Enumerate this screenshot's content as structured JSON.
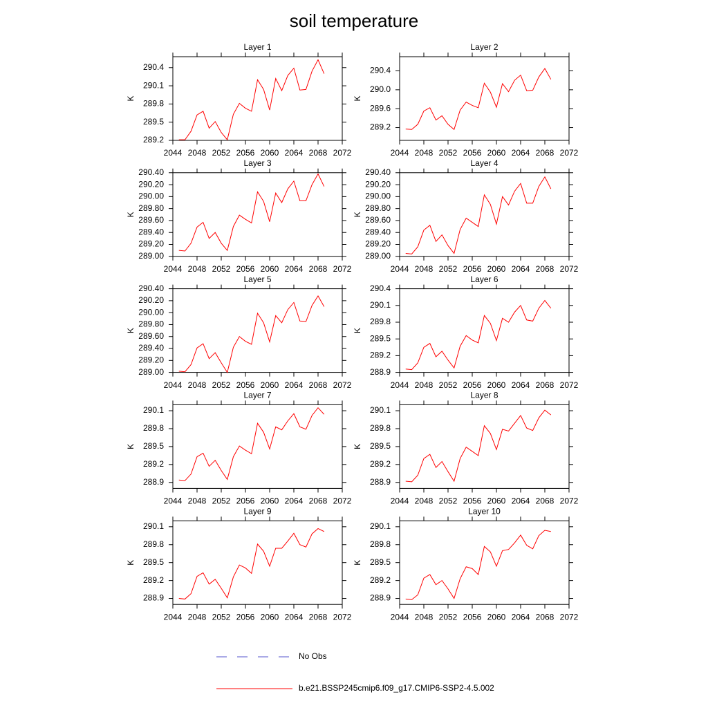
{
  "title": "soil temperature",
  "legend": [
    {
      "name": "No Obs",
      "color": "#5555cc",
      "dash": true
    },
    {
      "name": "b.e21.BSSP245cmip6.f09_g17.CMIP6-SSP2-4.5.002",
      "color": "#ff0000",
      "dash": false
    }
  ],
  "chart_data": [
    {
      "type": "line",
      "title": "Layer 1",
      "ylabel": "K",
      "x": [
        2045,
        2046,
        2047,
        2048,
        2049,
        2050,
        2051,
        2052,
        2053,
        2054,
        2055,
        2056,
        2057,
        2058,
        2059,
        2060,
        2061,
        2062,
        2063,
        2064,
        2065,
        2066,
        2067,
        2068,
        2069
      ],
      "values": [
        289.21,
        289.21,
        289.35,
        289.62,
        289.68,
        289.4,
        289.51,
        289.33,
        289.21,
        289.63,
        289.81,
        289.73,
        289.68,
        290.2,
        290.04,
        289.7,
        290.22,
        290.02,
        290.27,
        290.39,
        290.03,
        290.04,
        290.34,
        290.53,
        290.3
      ],
      "xlim": [
        2044,
        2072
      ],
      "xticks": [
        2044,
        2048,
        2052,
        2056,
        2060,
        2064,
        2068,
        2072
      ],
      "ylim": [
        289.2,
        290.58
      ],
      "yticks": [
        289.2,
        289.5,
        289.8,
        290.1,
        290.4
      ]
    },
    {
      "type": "line",
      "title": "Layer 2",
      "ylabel": "K",
      "x": [
        2045,
        2046,
        2047,
        2048,
        2049,
        2050,
        2051,
        2052,
        2053,
        2054,
        2055,
        2056,
        2057,
        2058,
        2059,
        2060,
        2061,
        2062,
        2063,
        2064,
        2065,
        2066,
        2067,
        2068,
        2069
      ],
      "values": [
        289.17,
        289.16,
        289.27,
        289.55,
        289.62,
        289.36,
        289.45,
        289.27,
        289.16,
        289.57,
        289.74,
        289.67,
        289.62,
        290.14,
        289.95,
        289.63,
        290.13,
        289.96,
        290.2,
        290.31,
        289.98,
        289.99,
        290.27,
        290.45,
        290.22
      ],
      "xlim": [
        2044,
        2072
      ],
      "xticks": [
        2044,
        2048,
        2052,
        2056,
        2060,
        2064,
        2068,
        2072
      ],
      "ylim": [
        288.93,
        290.7
      ],
      "yticks": [
        289.2,
        289.6,
        {
          "value": 290.0,
          "label": "290.0"
        },
        290.4
      ]
    },
    {
      "type": "line",
      "title": "Layer 3",
      "ylabel": "K",
      "x": [
        2045,
        2046,
        2047,
        2048,
        2049,
        2050,
        2051,
        2052,
        2053,
        2054,
        2055,
        2056,
        2057,
        2058,
        2059,
        2060,
        2061,
        2062,
        2063,
        2064,
        2065,
        2066,
        2067,
        2068,
        2069
      ],
      "values": [
        289.1,
        289.09,
        289.22,
        289.49,
        289.57,
        289.3,
        289.4,
        289.22,
        289.1,
        289.5,
        289.69,
        289.62,
        289.56,
        290.08,
        289.92,
        289.58,
        290.06,
        289.9,
        290.13,
        290.26,
        289.93,
        289.93,
        290.2,
        290.38,
        290.17
      ],
      "xlim": [
        2044,
        2072
      ],
      "xticks": [
        2044,
        2048,
        2052,
        2056,
        2060,
        2064,
        2068,
        2072
      ],
      "ylim": [
        289.0,
        290.4
      ],
      "yticks": [
        {
          "value": 289.0,
          "label": "289.00"
        },
        {
          "value": 289.2,
          "label": "289.20"
        },
        {
          "value": 289.4,
          "label": "289.40"
        },
        {
          "value": 289.6,
          "label": "289.60"
        },
        {
          "value": 289.8,
          "label": "289.80"
        },
        {
          "value": 290.0,
          "label": "290.00"
        },
        {
          "value": 290.2,
          "label": "290.20"
        },
        {
          "value": 290.4,
          "label": "290.40"
        }
      ]
    },
    {
      "type": "line",
      "title": "Layer 4",
      "ylabel": "K",
      "x": [
        2045,
        2046,
        2047,
        2048,
        2049,
        2050,
        2051,
        2052,
        2053,
        2054,
        2055,
        2056,
        2057,
        2058,
        2059,
        2060,
        2061,
        2062,
        2063,
        2064,
        2065,
        2066,
        2067,
        2068,
        2069
      ],
      "values": [
        289.05,
        289.04,
        289.16,
        289.44,
        289.52,
        289.25,
        289.36,
        289.18,
        289.05,
        289.45,
        289.64,
        289.57,
        289.5,
        290.03,
        289.87,
        289.54,
        290.0,
        289.86,
        290.09,
        290.22,
        289.89,
        289.89,
        290.17,
        290.33,
        290.13
      ],
      "xlim": [
        2044,
        2072
      ],
      "xticks": [
        2044,
        2048,
        2052,
        2056,
        2060,
        2064,
        2068,
        2072
      ],
      "ylim": [
        289.0,
        290.4
      ],
      "yticks": [
        {
          "value": 289.0,
          "label": "289.00"
        },
        {
          "value": 289.2,
          "label": "289.20"
        },
        {
          "value": 289.4,
          "label": "289.40"
        },
        {
          "value": 289.6,
          "label": "289.60"
        },
        {
          "value": 289.8,
          "label": "289.80"
        },
        {
          "value": 290.0,
          "label": "290.00"
        },
        {
          "value": 290.2,
          "label": "290.20"
        },
        {
          "value": 290.4,
          "label": "290.40"
        }
      ]
    },
    {
      "type": "line",
      "title": "Layer 5",
      "ylabel": "K",
      "x": [
        2045,
        2046,
        2047,
        2048,
        2049,
        2050,
        2051,
        2052,
        2053,
        2054,
        2055,
        2056,
        2057,
        2058,
        2059,
        2060,
        2061,
        2062,
        2063,
        2064,
        2065,
        2066,
        2067,
        2068,
        2069
      ],
      "values": [
        289.02,
        289.01,
        289.13,
        289.41,
        289.48,
        289.23,
        289.33,
        289.16,
        289.0,
        289.42,
        289.6,
        289.52,
        289.47,
        289.99,
        289.83,
        289.51,
        289.95,
        289.83,
        290.05,
        290.17,
        289.86,
        289.85,
        290.12,
        290.28,
        290.1
      ],
      "xlim": [
        2044,
        2072
      ],
      "xticks": [
        2044,
        2048,
        2052,
        2056,
        2060,
        2064,
        2068,
        2072
      ],
      "ylim": [
        289.0,
        290.4
      ],
      "yticks": [
        {
          "value": 289.0,
          "label": "289.00"
        },
        {
          "value": 289.2,
          "label": "289.20"
        },
        {
          "value": 289.4,
          "label": "289.40"
        },
        {
          "value": 289.6,
          "label": "289.60"
        },
        {
          "value": 289.8,
          "label": "289.80"
        },
        {
          "value": 290.0,
          "label": "290.00"
        },
        {
          "value": 290.2,
          "label": "290.20"
        },
        {
          "value": 290.4,
          "label": "290.40"
        }
      ]
    },
    {
      "type": "line",
      "title": "Layer 6",
      "ylabel": "K",
      "x": [
        2045,
        2046,
        2047,
        2048,
        2049,
        2050,
        2051,
        2052,
        2053,
        2054,
        2055,
        2056,
        2057,
        2058,
        2059,
        2060,
        2061,
        2062,
        2063,
        2064,
        2065,
        2066,
        2067,
        2068,
        2069
      ],
      "values": [
        288.96,
        288.95,
        289.07,
        289.35,
        289.42,
        289.18,
        289.28,
        289.12,
        288.98,
        289.37,
        289.56,
        289.48,
        289.43,
        289.92,
        289.78,
        289.47,
        289.87,
        289.8,
        289.98,
        290.1,
        289.84,
        289.82,
        290.05,
        290.19,
        290.05
      ],
      "xlim": [
        2044,
        2072
      ],
      "xticks": [
        2044,
        2048,
        2052,
        2056,
        2060,
        2064,
        2068,
        2072
      ],
      "ylim": [
        288.9,
        290.4
      ],
      "yticks": [
        288.9,
        289.2,
        289.5,
        289.8,
        290.1,
        290.4
      ]
    },
    {
      "type": "line",
      "title": "Layer 7",
      "ylabel": "K",
      "x": [
        2045,
        2046,
        2047,
        2048,
        2049,
        2050,
        2051,
        2052,
        2053,
        2054,
        2055,
        2056,
        2057,
        2058,
        2059,
        2060,
        2061,
        2062,
        2063,
        2064,
        2065,
        2066,
        2067,
        2068,
        2069
      ],
      "values": [
        288.94,
        288.93,
        289.04,
        289.33,
        289.39,
        289.17,
        289.27,
        289.1,
        288.95,
        289.33,
        289.51,
        289.44,
        289.38,
        289.89,
        289.74,
        289.46,
        289.83,
        289.78,
        289.93,
        290.05,
        289.83,
        289.79,
        290.02,
        290.15,
        290.04
      ],
      "xlim": [
        2044,
        2072
      ],
      "xticks": [
        2044,
        2048,
        2052,
        2056,
        2060,
        2064,
        2068,
        2072
      ],
      "ylim": [
        288.8,
        290.2
      ],
      "yticks": [
        288.9,
        289.2,
        289.5,
        289.8,
        290.1
      ]
    },
    {
      "type": "line",
      "title": "Layer 8",
      "ylabel": "K",
      "x": [
        2045,
        2046,
        2047,
        2048,
        2049,
        2050,
        2051,
        2052,
        2053,
        2054,
        2055,
        2056,
        2057,
        2058,
        2059,
        2060,
        2061,
        2062,
        2063,
        2064,
        2065,
        2066,
        2067,
        2068,
        2069
      ],
      "values": [
        288.92,
        288.91,
        289.02,
        289.3,
        289.37,
        289.15,
        289.25,
        289.08,
        288.92,
        289.3,
        289.49,
        289.42,
        289.35,
        289.85,
        289.72,
        289.45,
        289.79,
        289.76,
        289.89,
        290.02,
        289.81,
        289.77,
        289.98,
        290.11,
        290.03
      ],
      "xlim": [
        2044,
        2072
      ],
      "xticks": [
        2044,
        2048,
        2052,
        2056,
        2060,
        2064,
        2068,
        2072
      ],
      "ylim": [
        288.8,
        290.2
      ],
      "yticks": [
        288.9,
        289.2,
        289.5,
        289.8,
        290.1
      ]
    },
    {
      "type": "line",
      "title": "Layer 9",
      "ylabel": "K",
      "x": [
        2045,
        2046,
        2047,
        2048,
        2049,
        2050,
        2051,
        2052,
        2053,
        2054,
        2055,
        2056,
        2057,
        2058,
        2059,
        2060,
        2061,
        2062,
        2063,
        2064,
        2065,
        2066,
        2067,
        2068,
        2069
      ],
      "values": [
        288.9,
        288.89,
        288.98,
        289.27,
        289.33,
        289.14,
        289.22,
        289.07,
        288.91,
        289.26,
        289.46,
        289.41,
        289.32,
        289.81,
        289.69,
        289.44,
        289.74,
        289.74,
        289.86,
        289.99,
        289.8,
        289.76,
        289.98,
        290.07,
        290.02
      ],
      "xlim": [
        2044,
        2072
      ],
      "xticks": [
        2044,
        2048,
        2052,
        2056,
        2060,
        2064,
        2068,
        2072
      ],
      "ylim": [
        288.8,
        290.2
      ],
      "yticks": [
        288.9,
        289.2,
        289.5,
        289.8,
        290.1
      ]
    },
    {
      "type": "line",
      "title": "Layer 10",
      "ylabel": "K",
      "x": [
        2045,
        2046,
        2047,
        2048,
        2049,
        2050,
        2051,
        2052,
        2053,
        2054,
        2055,
        2056,
        2057,
        2058,
        2059,
        2060,
        2061,
        2062,
        2063,
        2064,
        2065,
        2066,
        2067,
        2068,
        2069
      ],
      "values": [
        288.89,
        288.88,
        288.96,
        289.24,
        289.3,
        289.13,
        289.2,
        289.06,
        288.9,
        289.23,
        289.43,
        289.4,
        289.3,
        289.77,
        289.68,
        289.44,
        289.7,
        289.72,
        289.83,
        289.96,
        289.79,
        289.73,
        289.95,
        290.04,
        290.02
      ],
      "xlim": [
        2044,
        2072
      ],
      "xticks": [
        2044,
        2048,
        2052,
        2056,
        2060,
        2064,
        2068,
        2072
      ],
      "ylim": [
        288.8,
        290.2
      ],
      "yticks": [
        288.9,
        289.2,
        289.5,
        289.8,
        290.1
      ]
    }
  ]
}
